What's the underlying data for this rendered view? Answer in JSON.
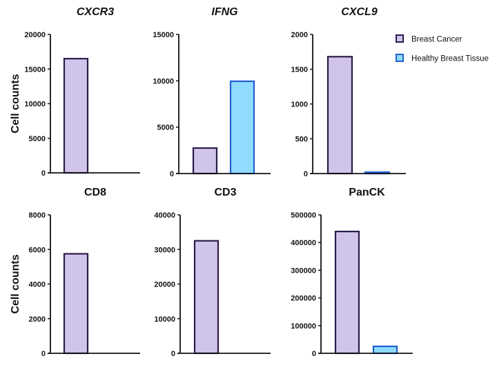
{
  "colors": {
    "Breast Cancer": {
      "fill": "#d0c4ea",
      "stroke": "#2a1a4a"
    },
    "Healthy Breast Tissue": {
      "fill": "#8fdcff",
      "stroke": "#1f5fd0"
    }
  },
  "legend": [
    "Breast Cancer",
    "Healthy Breast Tissue"
  ],
  "chart_data": [
    {
      "type": "bar",
      "title": "CXCR3",
      "title_italic": true,
      "ylabel": "Cell counts",
      "ylim": [
        0,
        20000
      ],
      "yticks": [
        0,
        5000,
        10000,
        15000,
        20000
      ],
      "series": [
        {
          "name": "Breast Cancer",
          "values": [
            16500
          ]
        },
        {
          "name": "Healthy Breast Tissue",
          "values": [
            0
          ]
        }
      ]
    },
    {
      "type": "bar",
      "title": "IFNG",
      "title_italic": true,
      "ylabel": "",
      "ylim": [
        0,
        15000
      ],
      "yticks": [
        0,
        5000,
        10000,
        15000
      ],
      "series": [
        {
          "name": "Breast Cancer",
          "values": [
            2750
          ]
        },
        {
          "name": "Healthy Breast Tissue",
          "values": [
            9950
          ]
        }
      ]
    },
    {
      "type": "bar",
      "title": "CXCL9",
      "title_italic": true,
      "ylabel": "",
      "ylim": [
        0,
        2000
      ],
      "yticks": [
        0,
        500,
        1000,
        1500,
        2000
      ],
      "series": [
        {
          "name": "Breast Cancer",
          "values": [
            1680
          ]
        },
        {
          "name": "Healthy Breast Tissue",
          "values": [
            20
          ]
        }
      ]
    },
    {
      "type": "bar",
      "title": "CD8",
      "title_italic": false,
      "ylabel": "Cell counts",
      "ylim": [
        0,
        8000
      ],
      "yticks": [
        0,
        2000,
        4000,
        6000,
        8000
      ],
      "series": [
        {
          "name": "Breast Cancer",
          "values": [
            5750
          ]
        },
        {
          "name": "Healthy Breast Tissue",
          "values": [
            0
          ]
        }
      ]
    },
    {
      "type": "bar",
      "title": "CD3",
      "title_italic": false,
      "ylabel": "",
      "ylim": [
        0,
        40000
      ],
      "yticks": [
        0,
        10000,
        20000,
        30000,
        40000
      ],
      "series": [
        {
          "name": "Breast Cancer",
          "values": [
            32500
          ]
        },
        {
          "name": "Healthy Breast Tissue",
          "values": [
            0
          ]
        }
      ]
    },
    {
      "type": "bar",
      "title": "PanCK",
      "title_italic": false,
      "ylabel": "",
      "ylim": [
        0,
        500000
      ],
      "yticks": [
        0,
        100000,
        200000,
        300000,
        400000,
        500000
      ],
      "series": [
        {
          "name": "Breast Cancer",
          "values": [
            440000
          ]
        },
        {
          "name": "Healthy Breast Tissue",
          "values": [
            25000
          ]
        }
      ]
    }
  ]
}
